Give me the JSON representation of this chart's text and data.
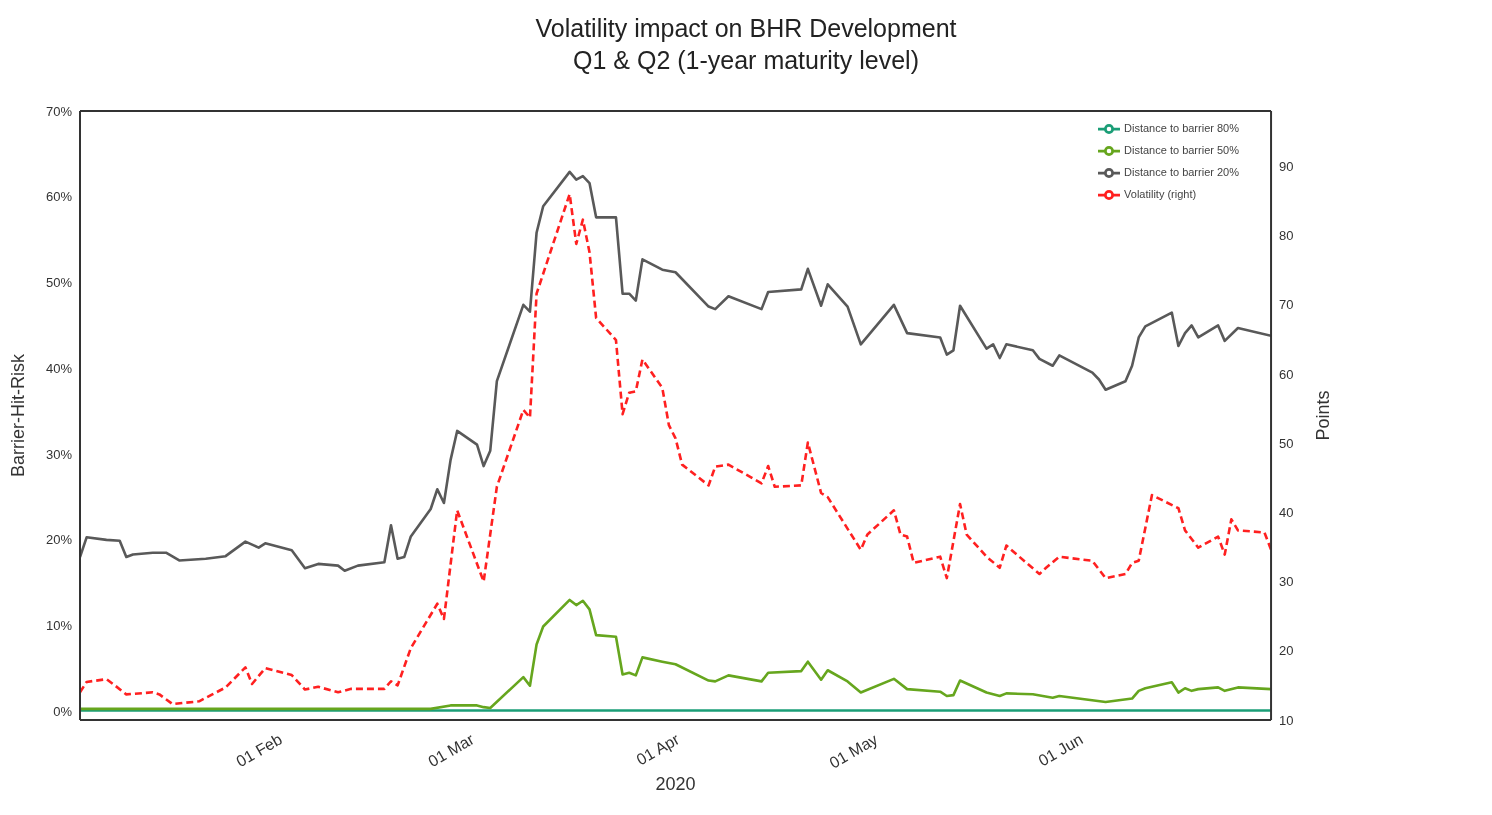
{
  "chart_data": {
    "type": "line",
    "title": "Volatility impact on BHR Development",
    "subtitle": "Q1 & Q2 (1-year maturity level)",
    "xlabel": "2020",
    "ylabel": "Barrier-Hit-Risk",
    "y2label": "Points",
    "xlim": [
      "2020-01-02",
      "2020-06-30"
    ],
    "xticks": [
      {
        "value": "2020-02-01",
        "label": "01 Feb"
      },
      {
        "value": "2020-03-01",
        "label": "01 Mar"
      },
      {
        "value": "2020-04-01",
        "label": "01 Apr"
      },
      {
        "value": "2020-05-01",
        "label": "01 May"
      },
      {
        "value": "2020-06-01",
        "label": "01 Jun"
      }
    ],
    "ylim": [
      -1,
      70
    ],
    "yticks": [
      {
        "value": 0,
        "label": "0%"
      },
      {
        "value": 10,
        "label": "10%"
      },
      {
        "value": 20,
        "label": "20%"
      },
      {
        "value": 30,
        "label": "30%"
      },
      {
        "value": 40,
        "label": "40%"
      },
      {
        "value": 50,
        "label": "50%"
      },
      {
        "value": 60,
        "label": "60%"
      },
      {
        "value": 70,
        "label": "70%"
      }
    ],
    "y2lim": [
      10,
      98
    ],
    "y2ticks": [
      10,
      20,
      30,
      40,
      50,
      60,
      70,
      80,
      90
    ],
    "grid": false,
    "legend": "top right",
    "series": [
      {
        "name": "Distance to barrier 80%",
        "color": "#1b9e77",
        "line_style": "solid",
        "x": [
          "2020-01-02",
          "2020-06-30"
        ],
        "values": [
          0.1,
          0.1
        ]
      },
      {
        "name": "Distance to barrier 50%",
        "color": "#66a61e",
        "line_style": "solid",
        "x": [
          "2020-01-02",
          "2020-02-24",
          "2020-02-27",
          "2020-03-02",
          "2020-03-03",
          "2020-03-04",
          "2020-03-09",
          "2020-03-10",
          "2020-03-11",
          "2020-03-12",
          "2020-03-16",
          "2020-03-17",
          "2020-03-18",
          "2020-03-19",
          "2020-03-20",
          "2020-03-23",
          "2020-03-24",
          "2020-03-25",
          "2020-03-26",
          "2020-03-27",
          "2020-03-30",
          "2020-04-01",
          "2020-04-06",
          "2020-04-07",
          "2020-04-09",
          "2020-04-14",
          "2020-04-15",
          "2020-04-20",
          "2020-04-21",
          "2020-04-23",
          "2020-04-24",
          "2020-04-27",
          "2020-04-29",
          "2020-05-04",
          "2020-05-06",
          "2020-05-11",
          "2020-05-12",
          "2020-05-13",
          "2020-05-14",
          "2020-05-18",
          "2020-05-20",
          "2020-05-21",
          "2020-05-25",
          "2020-05-28",
          "2020-05-29",
          "2020-06-05",
          "2020-06-09",
          "2020-06-10",
          "2020-06-11",
          "2020-06-15",
          "2020-06-16",
          "2020-06-17",
          "2020-06-18",
          "2020-06-19",
          "2020-06-22",
          "2020-06-23",
          "2020-06-25",
          "2020-06-30"
        ],
        "values": [
          0.3,
          0.3,
          0.7,
          0.7,
          0.5,
          0.4,
          4.0,
          3.0,
          7.8,
          9.9,
          13.0,
          12.4,
          12.9,
          11.9,
          8.9,
          8.7,
          4.3,
          4.5,
          4.2,
          6.3,
          5.8,
          5.5,
          3.6,
          3.5,
          4.2,
          3.5,
          4.5,
          4.7,
          5.8,
          3.7,
          4.8,
          3.5,
          2.2,
          3.8,
          2.6,
          2.3,
          1.8,
          1.9,
          3.6,
          2.2,
          1.8,
          2.1,
          2.0,
          1.6,
          1.8,
          1.1,
          1.5,
          2.4,
          2.7,
          3.4,
          2.2,
          2.7,
          2.4,
          2.6,
          2.8,
          2.4,
          2.8,
          2.6
        ]
      },
      {
        "name": "Distance to barrier 20%",
        "color": "#595959",
        "line_style": "solid",
        "x": [
          "2020-01-02",
          "2020-01-03",
          "2020-01-06",
          "2020-01-08",
          "2020-01-09",
          "2020-01-10",
          "2020-01-13",
          "2020-01-15",
          "2020-01-17",
          "2020-01-21",
          "2020-01-24",
          "2020-01-27",
          "2020-01-29",
          "2020-01-30",
          "2020-02-03",
          "2020-02-05",
          "2020-02-07",
          "2020-02-10",
          "2020-02-11",
          "2020-02-13",
          "2020-02-17",
          "2020-02-18",
          "2020-02-19",
          "2020-02-20",
          "2020-02-21",
          "2020-02-24",
          "2020-02-25",
          "2020-02-26",
          "2020-02-27",
          "2020-02-28",
          "2020-03-02",
          "2020-03-03",
          "2020-03-04",
          "2020-03-05",
          "2020-03-09",
          "2020-03-10",
          "2020-03-11",
          "2020-03-12",
          "2020-03-16",
          "2020-03-17",
          "2020-03-18",
          "2020-03-19",
          "2020-03-20",
          "2020-03-23",
          "2020-03-24",
          "2020-03-25",
          "2020-03-26",
          "2020-03-27",
          "2020-03-30",
          "2020-04-01",
          "2020-04-06",
          "2020-04-07",
          "2020-04-09",
          "2020-04-14",
          "2020-04-15",
          "2020-04-20",
          "2020-04-21",
          "2020-04-23",
          "2020-04-24",
          "2020-04-27",
          "2020-04-29",
          "2020-05-04",
          "2020-05-06",
          "2020-05-11",
          "2020-05-12",
          "2020-05-13",
          "2020-05-14",
          "2020-05-18",
          "2020-05-19",
          "2020-05-20",
          "2020-05-21",
          "2020-05-25",
          "2020-05-26",
          "2020-05-28",
          "2020-05-29",
          "2020-06-03",
          "2020-06-04",
          "2020-06-05",
          "2020-06-08",
          "2020-06-09",
          "2020-06-10",
          "2020-06-11",
          "2020-06-15",
          "2020-06-16",
          "2020-06-17",
          "2020-06-18",
          "2020-06-19",
          "2020-06-22",
          "2020-06-23",
          "2020-06-25",
          "2020-06-30"
        ],
        "values": [
          18.0,
          20.3,
          20.0,
          19.9,
          18.0,
          18.3,
          18.5,
          18.5,
          17.6,
          17.8,
          18.1,
          19.8,
          19.1,
          19.6,
          18.8,
          16.7,
          17.2,
          17.0,
          16.4,
          17.0,
          17.4,
          21.7,
          17.8,
          18.0,
          20.4,
          23.6,
          25.9,
          24.3,
          29.3,
          32.7,
          31.1,
          28.6,
          30.4,
          38.5,
          47.4,
          46.6,
          55.8,
          58.9,
          62.9,
          62.0,
          62.4,
          61.6,
          57.6,
          57.6,
          48.7,
          48.7,
          47.9,
          52.7,
          51.5,
          51.2,
          47.2,
          46.9,
          48.4,
          46.9,
          48.9,
          49.2,
          51.6,
          47.3,
          49.8,
          47.2,
          42.8,
          47.4,
          44.1,
          43.6,
          41.6,
          42.1,
          47.3,
          42.3,
          42.8,
          41.2,
          42.8,
          42.1,
          41.1,
          40.3,
          41.5,
          39.5,
          38.7,
          37.5,
          38.5,
          40.3,
          43.6,
          44.9,
          46.5,
          42.6,
          44.1,
          45.0,
          43.6,
          45.0,
          43.2,
          44.7,
          43.8
        ]
      },
      {
        "name": "Volatility (right)",
        "color": "#ff2020",
        "line_style": "dashed",
        "axis": "y2",
        "x": [
          "2020-01-02",
          "2020-01-03",
          "2020-01-06",
          "2020-01-07",
          "2020-01-09",
          "2020-01-13",
          "2020-01-14",
          "2020-01-16",
          "2020-01-20",
          "2020-01-22",
          "2020-01-24",
          "2020-01-27",
          "2020-01-28",
          "2020-01-30",
          "2020-02-03",
          "2020-02-05",
          "2020-02-07",
          "2020-02-10",
          "2020-02-12",
          "2020-02-17",
          "2020-02-18",
          "2020-02-19",
          "2020-02-21",
          "2020-02-25",
          "2020-02-26",
          "2020-02-28",
          "2020-03-03",
          "2020-03-05",
          "2020-03-09",
          "2020-03-10",
          "2020-03-11",
          "2020-03-16",
          "2020-03-17",
          "2020-03-18",
          "2020-03-19",
          "2020-03-20",
          "2020-03-23",
          "2020-03-24",
          "2020-03-25",
          "2020-03-26",
          "2020-03-27",
          "2020-03-30",
          "2020-03-31",
          "2020-04-01",
          "2020-04-02",
          "2020-04-06",
          "2020-04-07",
          "2020-04-09",
          "2020-04-14",
          "2020-04-15",
          "2020-04-16",
          "2020-04-20",
          "2020-04-21",
          "2020-04-23",
          "2020-04-24",
          "2020-04-29",
          "2020-04-30",
          "2020-05-04",
          "2020-05-05",
          "2020-05-06",
          "2020-05-07",
          "2020-05-11",
          "2020-05-12",
          "2020-05-14",
          "2020-05-15",
          "2020-05-18",
          "2020-05-20",
          "2020-05-21",
          "2020-05-26",
          "2020-05-27",
          "2020-05-29",
          "2020-06-03",
          "2020-06-05",
          "2020-06-08",
          "2020-06-09",
          "2020-06-10",
          "2020-06-12",
          "2020-06-16",
          "2020-06-17",
          "2020-06-19",
          "2020-06-22",
          "2020-06-23",
          "2020-06-24",
          "2020-06-25",
          "2020-06-29",
          "2020-06-30"
        ],
        "values": [
          14.0,
          15.5,
          15.9,
          15.2,
          13.7,
          14.0,
          13.7,
          12.3,
          12.7,
          13.7,
          14.7,
          17.6,
          15.2,
          17.5,
          16.5,
          14.4,
          14.8,
          14.0,
          14.5,
          14.5,
          15.6,
          15.0,
          20.4,
          26.8,
          24.6,
          40.3,
          30.0,
          43.7,
          54.8,
          53.7,
          71.6,
          86.0,
          78.8,
          82.3,
          77.6,
          68.1,
          64.9,
          54.2,
          57.3,
          57.5,
          62.1,
          58.0,
          52.6,
          50.7,
          46.9,
          43.9,
          46.6,
          46.9,
          44.2,
          46.7,
          43.7,
          43.9,
          50.1,
          42.8,
          42.2,
          34.6,
          36.8,
          40.3,
          36.8,
          36.5,
          32.7,
          33.6,
          30.5,
          41.2,
          36.8,
          33.6,
          32.0,
          35.2,
          31.1,
          32.0,
          33.6,
          33.0,
          30.5,
          31.1,
          32.7,
          33.0,
          42.5,
          40.6,
          37.4,
          34.9,
          36.5,
          33.9,
          39.0,
          37.4,
          37.1,
          34.6
        ]
      }
    ]
  }
}
